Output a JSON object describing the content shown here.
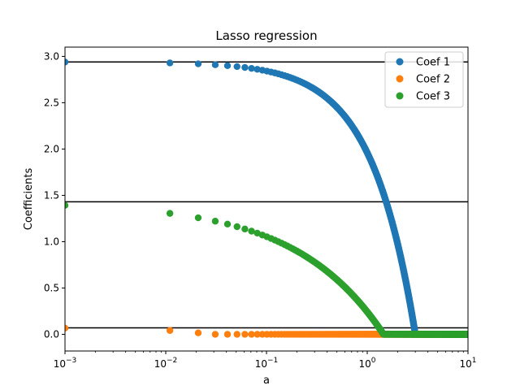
{
  "chart_data": {
    "type": "scatter",
    "title": "Lasso regression",
    "xlabel": "a",
    "ylabel": "Coefficients",
    "xscale": "log",
    "xlim": [
      0.001,
      10
    ],
    "ylim": [
      -0.18,
      3.1
    ],
    "x_ticks": [
      {
        "value": 0.001,
        "base": "10",
        "exp": "−3"
      },
      {
        "value": 0.01,
        "base": "10",
        "exp": "−2"
      },
      {
        "value": 0.1,
        "base": "10",
        "exp": "−1"
      },
      {
        "value": 1,
        "base": "10",
        "exp": "0"
      },
      {
        "value": 10,
        "base": "10",
        "exp": "1"
      }
    ],
    "y_ticks": [
      "0.0",
      "0.5",
      "1.0",
      "1.5",
      "2.0",
      "2.5",
      "3.0"
    ],
    "grid": false,
    "legend_position": "top-right",
    "reference_lines": [
      2.94,
      1.43,
      0.07
    ],
    "series": [
      {
        "name": "Coef 1",
        "color": "#1f77b4",
        "y0": 2.94,
        "threshold": 3.0,
        "power": 1.0
      },
      {
        "name": "Coef 2",
        "color": "#ff7f0e",
        "y0": 0.07,
        "threshold": 0.027,
        "power": 1.0
      },
      {
        "name": "Coef 3",
        "color": "#2ca02c",
        "y0": 1.43,
        "threshold": 1.45,
        "power": 0.5
      }
    ],
    "x_values": {
      "start": 0.001,
      "end": 10,
      "step": 0.01
    }
  }
}
